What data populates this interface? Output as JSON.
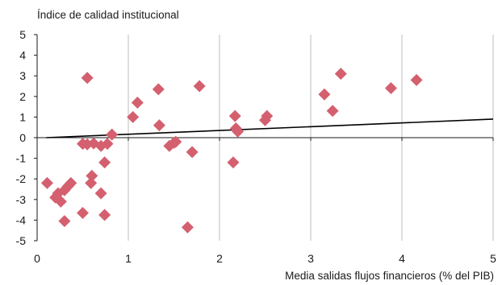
{
  "chart_data": {
    "type": "scatter",
    "ylabel": "Índice de calidad institucional",
    "xlabel": "Media salidas flujos financieros (% del PIB)",
    "xlim": [
      0,
      5
    ],
    "ylim": [
      -5,
      5
    ],
    "x_ticks": [
      "0",
      "1",
      "2",
      "3",
      "4",
      "5"
    ],
    "y_ticks": [
      "5",
      "4",
      "3",
      "2",
      "1",
      "0",
      "-1",
      "-2",
      "-3",
      "-4",
      "-5"
    ],
    "grid": {
      "vertical": true,
      "horizontal": false
    },
    "marker_color": "#d4606f",
    "trendline": {
      "x": [
        0.1,
        5.0
      ],
      "y": [
        0.0,
        0.9
      ],
      "color": "#000000"
    },
    "points": [
      {
        "x": 0.11,
        "y": -2.2
      },
      {
        "x": 0.2,
        "y": -2.9
      },
      {
        "x": 0.23,
        "y": -2.7
      },
      {
        "x": 0.26,
        "y": -3.1
      },
      {
        "x": 0.3,
        "y": -2.55
      },
      {
        "x": 0.3,
        "y": -4.05
      },
      {
        "x": 0.34,
        "y": -2.35
      },
      {
        "x": 0.37,
        "y": -2.2
      },
      {
        "x": 0.5,
        "y": -0.3
      },
      {
        "x": 0.5,
        "y": -3.65
      },
      {
        "x": 0.55,
        "y": -0.32
      },
      {
        "x": 0.55,
        "y": 2.9
      },
      {
        "x": 0.59,
        "y": -2.2
      },
      {
        "x": 0.6,
        "y": -1.85
      },
      {
        "x": 0.62,
        "y": -0.28
      },
      {
        "x": 0.7,
        "y": -0.4
      },
      {
        "x": 0.7,
        "y": -2.7
      },
      {
        "x": 0.74,
        "y": -1.2
      },
      {
        "x": 0.74,
        "y": -3.75
      },
      {
        "x": 0.77,
        "y": -0.3
      },
      {
        "x": 0.82,
        "y": 0.15
      },
      {
        "x": 1.05,
        "y": 1.0
      },
      {
        "x": 1.1,
        "y": 1.7
      },
      {
        "x": 1.33,
        "y": 2.35
      },
      {
        "x": 1.34,
        "y": 0.6
      },
      {
        "x": 1.45,
        "y": -0.4
      },
      {
        "x": 1.5,
        "y": -0.25
      },
      {
        "x": 1.52,
        "y": -0.2
      },
      {
        "x": 1.65,
        "y": -4.35
      },
      {
        "x": 1.7,
        "y": -0.7
      },
      {
        "x": 1.78,
        "y": 2.5
      },
      {
        "x": 2.15,
        "y": -1.2
      },
      {
        "x": 2.17,
        "y": 1.05
      },
      {
        "x": 2.18,
        "y": 0.45
      },
      {
        "x": 2.2,
        "y": 0.3
      },
      {
        "x": 2.5,
        "y": 0.85
      },
      {
        "x": 2.52,
        "y": 1.05
      },
      {
        "x": 3.15,
        "y": 2.1
      },
      {
        "x": 3.24,
        "y": 1.3
      },
      {
        "x": 3.33,
        "y": 3.1
      },
      {
        "x": 3.88,
        "y": 2.4
      },
      {
        "x": 4.16,
        "y": 2.8
      }
    ]
  }
}
